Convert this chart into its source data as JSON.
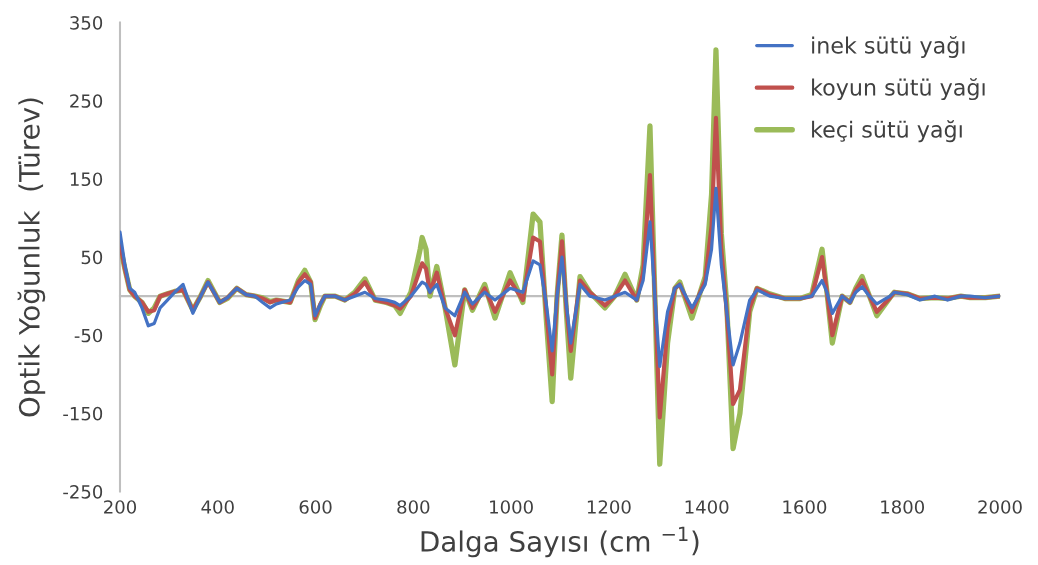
{
  "chart_data": {
    "type": "line",
    "xlabel": "Dalga Sayısı (cm $^{−1}$)",
    "ylabel": "Optik Yoğunluk  (Türev)",
    "x": [
      200,
      210,
      220,
      230,
      245,
      258,
      270,
      282,
      297,
      312,
      329,
      349,
      365,
      380,
      404,
      420,
      439,
      458,
      476,
      492,
      507,
      520,
      548,
      565,
      578,
      590,
      599,
      610,
      619,
      640,
      660,
      680,
      701,
      722,
      745,
      762,
      773,
      795,
      814,
      818,
      826,
      834,
      848,
      865,
      885,
      905,
      921,
      946,
      967,
      998,
      1024,
      1045,
      1059,
      1072,
      1084,
      1094,
      1104,
      1113,
      1122,
      1141,
      1161,
      1192,
      1212,
      1233,
      1257,
      1270,
      1284,
      1294,
      1304,
      1320,
      1335,
      1345,
      1370,
      1397,
      1410,
      1419,
      1430,
      1441,
      1454,
      1468,
      1488,
      1503,
      1529,
      1560,
      1591,
      1615,
      1636,
      1646,
      1657,
      1677,
      1693,
      1705,
      1718,
      1733,
      1748,
      1775,
      1784,
      1810,
      1836,
      1867,
      1893,
      1920,
      1939,
      1970,
      2000
    ],
    "series": [
      {
        "name": "inek sütü yağı",
        "color": "#4472c4",
        "values": [
          82,
          40,
          10,
          5,
          -15,
          -38,
          -35,
          -15,
          -5,
          5,
          15,
          -22,
          0,
          18,
          -8,
          -2,
          10,
          2,
          0,
          -8,
          -15,
          -10,
          -5,
          12,
          20,
          15,
          -25,
          -10,
          0,
          0,
          -5,
          0,
          5,
          -3,
          -5,
          -8,
          -12,
          0,
          15,
          18,
          15,
          5,
          15,
          -15,
          -25,
          5,
          -10,
          5,
          -5,
          10,
          5,
          45,
          40,
          -10,
          -70,
          0,
          50,
          -10,
          -60,
          15,
          0,
          -5,
          0,
          5,
          -5,
          20,
          95,
          0,
          -90,
          -20,
          10,
          15,
          -15,
          15,
          60,
          138,
          40,
          -20,
          -88,
          -60,
          -5,
          8,
          0,
          -3,
          -3,
          0,
          20,
          5,
          -22,
          0,
          -8,
          5,
          12,
          0,
          -10,
          0,
          5,
          2,
          -5,
          0,
          -5,
          0,
          0,
          -2,
          0
        ]
      },
      {
        "name": "koyun sütü yağı",
        "color": "#c0504d",
        "values": [
          68,
          35,
          8,
          0,
          -8,
          -20,
          -18,
          0,
          3,
          6,
          8,
          -18,
          0,
          18,
          -8,
          -2,
          10,
          2,
          0,
          -3,
          -8,
          -5,
          -8,
          18,
          28,
          18,
          -28,
          -10,
          0,
          0,
          -5,
          3,
          18,
          -5,
          -8,
          -12,
          -16,
          0,
          35,
          42,
          35,
          5,
          30,
          -15,
          -50,
          8,
          -15,
          10,
          -20,
          20,
          -5,
          75,
          70,
          -20,
          -100,
          0,
          70,
          -15,
          -70,
          20,
          5,
          -12,
          0,
          20,
          -5,
          30,
          155,
          0,
          -155,
          -40,
          10,
          15,
          -20,
          20,
          90,
          228,
          60,
          -20,
          -138,
          -120,
          -15,
          10,
          2,
          -3,
          -3,
          0,
          50,
          5,
          -50,
          0,
          -8,
          8,
          20,
          0,
          -20,
          -2,
          5,
          3,
          -3,
          -2,
          -3,
          0,
          -2,
          -2,
          0
        ]
      },
      {
        "name": "keçi sütü yağı",
        "color": "#9bbb59",
        "values": [
          65,
          35,
          8,
          0,
          -8,
          -22,
          -15,
          0,
          3,
          6,
          8,
          -18,
          0,
          20,
          -8,
          -3,
          10,
          2,
          0,
          -2,
          -7,
          -5,
          -8,
          20,
          33,
          18,
          -30,
          -12,
          0,
          0,
          -5,
          5,
          22,
          -5,
          -8,
          -12,
          -22,
          5,
          60,
          75,
          60,
          0,
          38,
          -15,
          -88,
          8,
          -18,
          15,
          -28,
          30,
          -8,
          105,
          95,
          -30,
          -135,
          0,
          78,
          -20,
          -105,
          25,
          5,
          -15,
          0,
          28,
          -5,
          40,
          218,
          0,
          -215,
          -60,
          10,
          18,
          -28,
          25,
          130,
          315,
          80,
          -10,
          -195,
          -150,
          -20,
          10,
          3,
          -3,
          -3,
          2,
          60,
          5,
          -60,
          0,
          -8,
          10,
          25,
          0,
          -25,
          -2,
          5,
          3,
          -3,
          -2,
          -3,
          0,
          -2,
          -2,
          0
        ]
      }
    ],
    "xlim": [
      200,
      2000
    ],
    "xticks": [
      200,
      400,
      600,
      800,
      1000,
      1200,
      1400,
      1600,
      1800,
      2000
    ],
    "ylim": [
      -250,
      350
    ],
    "yticks": [
      -250,
      -150,
      -50,
      50,
      150,
      250,
      350
    ],
    "grid": false,
    "legend": "top right",
    "marker": "none",
    "line_style": "solid"
  }
}
